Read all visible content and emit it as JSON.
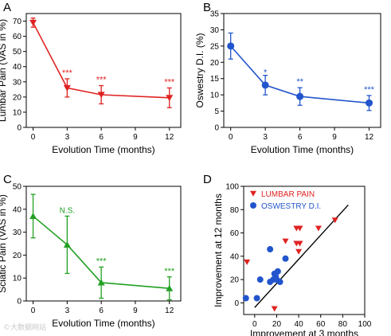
{
  "watermark": "©大数据网站",
  "colors": {
    "red": "#e02222",
    "blue": "#2255cc",
    "green": "#22a022",
    "axis": "#000000"
  },
  "chart_data": [
    {
      "panel_label": "A",
      "type": "line",
      "color": "#e02222",
      "marker": "triangle-down",
      "xlabel": "Evolution Time (months)",
      "ylabel": "Lumbar Pain (VAS in %)",
      "xlim": [
        -0.6,
        13
      ],
      "ylim": [
        0,
        75
      ],
      "xticks": [
        0,
        3,
        6,
        9,
        12
      ],
      "yticks": [
        0,
        10,
        20,
        30,
        40,
        50,
        60,
        70
      ],
      "x": [
        0,
        3,
        6,
        12
      ],
      "y": [
        69,
        26,
        21.5,
        19.5
      ],
      "err": [
        3,
        6,
        6,
        6.5
      ],
      "annotations": [
        "",
        "***",
        "***",
        "***"
      ],
      "annotation_color": "#e02222"
    },
    {
      "panel_label": "B",
      "type": "line",
      "color": "#2255cc",
      "marker": "circle",
      "xlabel": "Evolution Time (months)",
      "ylabel": "Oswestry D.I. (%)",
      "xlim": [
        -0.6,
        13
      ],
      "ylim": [
        0,
        35
      ],
      "xticks": [
        0,
        3,
        6,
        9,
        12
      ],
      "yticks": [
        0,
        5,
        10,
        15,
        20,
        25,
        30,
        35
      ],
      "x": [
        0,
        3,
        6,
        12
      ],
      "y": [
        25,
        13,
        9.5,
        7.5
      ],
      "err": [
        4,
        3,
        2.7,
        2.3
      ],
      "annotations": [
        "",
        "*",
        "**",
        "***"
      ],
      "annotation_color": "#2255cc"
    },
    {
      "panel_label": "C",
      "type": "line",
      "color": "#22a022",
      "marker": "triangle-up",
      "xlabel": "Evolution Time (months)",
      "ylabel": "Sciatic Pain (VAS in %)",
      "xlim": [
        -0.6,
        13
      ],
      "ylim": [
        0,
        50
      ],
      "xticks": [
        0,
        3,
        6,
        9,
        12
      ],
      "yticks": [
        0,
        10,
        20,
        30,
        40,
        50
      ],
      "x": [
        0,
        3,
        6,
        12
      ],
      "y": [
        37,
        24.5,
        8,
        5.5
      ],
      "err": [
        9.5,
        12.5,
        6.8,
        5
      ],
      "annotations": [
        "",
        "N.S.",
        "***",
        "***"
      ],
      "annotation_color": "#22a022"
    },
    {
      "panel_label": "D",
      "type": "scatter",
      "xlabel": "Improvement at 3 months",
      "ylabel": "Improvement at 12 months",
      "xlim": [
        -10,
        100
      ],
      "ylim": [
        -10,
        100
      ],
      "xticks": [
        0,
        20,
        40,
        60,
        80,
        100
      ],
      "yticks": [
        0,
        20,
        40,
        60,
        80,
        100
      ],
      "legend_position": "top-left",
      "series": [
        {
          "name": "LUMBAR PAIN",
          "color": "#e02222",
          "marker": "triangle-down",
          "points": [
            [
              -7,
              35
            ],
            [
              18,
              -5
            ],
            [
              28,
              53
            ],
            [
              38,
              64
            ],
            [
              41,
              64
            ],
            [
              38,
              51
            ],
            [
              41,
              51
            ],
            [
              40,
              44
            ],
            [
              58,
              64
            ],
            [
              73,
              71
            ]
          ]
        },
        {
          "name": "OSWESTRY D.I.",
          "color": "#2255cc",
          "marker": "circle",
          "points": [
            [
              -8,
              4
            ],
            [
              2,
              4
            ],
            [
              5,
              20
            ],
            [
              14,
              46
            ],
            [
              14,
              18
            ],
            [
              17,
              20
            ],
            [
              19,
              23
            ],
            [
              20,
              20
            ],
            [
              23,
              18
            ],
            [
              18,
              25
            ],
            [
              21,
              27
            ],
            [
              28,
              38
            ]
          ]
        }
      ],
      "fit_line": {
        "x": [
          0,
          85
        ],
        "y": [
          -4,
          84
        ],
        "color": "#000000"
      }
    }
  ]
}
